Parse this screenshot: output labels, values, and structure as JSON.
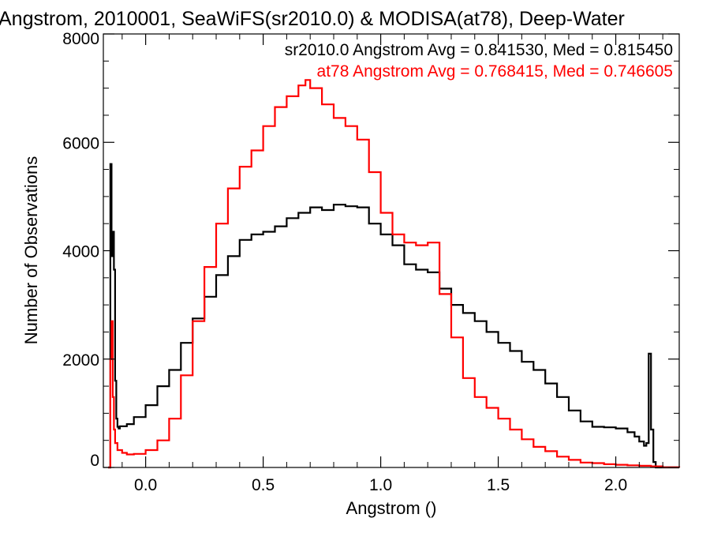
{
  "chart_data": {
    "type": "line",
    "title": "Angstrom, 2010001, SeaWiFS(sr2010.0) & MODISA(at78), Deep-Water",
    "xlabel": "Angstrom ()",
    "ylabel": "Number of Observations",
    "xlim": [
      -0.18,
      2.27
    ],
    "ylim": [
      0,
      8000
    ],
    "x_ticks": [
      0.0,
      0.5,
      1.0,
      1.5,
      2.0
    ],
    "x_tick_labels": [
      "0.0",
      "0.5",
      "1.0",
      "1.5",
      "2.0"
    ],
    "y_ticks": [
      0,
      2000,
      4000,
      6000,
      8000
    ],
    "y_tick_labels": [
      "0",
      "2000",
      "4000",
      "6000",
      "8000"
    ],
    "grid": false,
    "legend_position": "top-right",
    "annotations": [
      {
        "text": "sr2010.0 Angstrom Avg = 0.841530, Med = 0.815450",
        "color": "#000000"
      },
      {
        "text": "at78 Angstrom Avg = 0.768415, Med = 0.746605",
        "color": "#ff0000"
      }
    ],
    "series": [
      {
        "name": "sr2010.0",
        "color": "#000000",
        "x": [
          -0.16,
          -0.15,
          -0.145,
          -0.14,
          -0.135,
          -0.13,
          -0.125,
          -0.12,
          -0.115,
          -0.11,
          -0.1,
          -0.08,
          -0.05,
          0.0,
          0.05,
          0.1,
          0.15,
          0.2,
          0.25,
          0.3,
          0.35,
          0.4,
          0.45,
          0.5,
          0.55,
          0.6,
          0.65,
          0.7,
          0.75,
          0.8,
          0.85,
          0.9,
          0.95,
          1.0,
          1.05,
          1.1,
          1.15,
          1.2,
          1.25,
          1.3,
          1.35,
          1.4,
          1.45,
          1.5,
          1.55,
          1.6,
          1.65,
          1.7,
          1.75,
          1.8,
          1.85,
          1.9,
          1.95,
          2.0,
          2.05,
          2.08,
          2.1,
          2.12,
          2.13,
          2.14,
          2.15,
          2.16,
          2.17,
          2.2,
          2.27
        ],
        "y": [
          0,
          5600,
          3900,
          4350,
          3650,
          1600,
          900,
          750,
          720,
          760,
          760,
          800,
          930,
          1150,
          1500,
          1800,
          2300,
          2750,
          3150,
          3550,
          3900,
          4200,
          4300,
          4350,
          4450,
          4600,
          4700,
          4800,
          4750,
          4850,
          4820,
          4800,
          4500,
          4300,
          4100,
          3750,
          3650,
          3600,
          3300,
          3000,
          2850,
          2700,
          2500,
          2300,
          2150,
          1950,
          1800,
          1550,
          1300,
          1050,
          850,
          750,
          740,
          720,
          650,
          570,
          480,
          400,
          450,
          2100,
          700,
          100,
          0,
          0,
          0
        ]
      },
      {
        "name": "at78",
        "color": "#ff0000",
        "x": [
          -0.16,
          -0.15,
          -0.145,
          -0.14,
          -0.135,
          -0.13,
          -0.12,
          -0.1,
          -0.08,
          -0.05,
          0.0,
          0.05,
          0.1,
          0.15,
          0.2,
          0.25,
          0.3,
          0.35,
          0.4,
          0.45,
          0.5,
          0.55,
          0.6,
          0.65,
          0.68,
          0.7,
          0.75,
          0.8,
          0.85,
          0.9,
          0.95,
          1.0,
          1.05,
          1.1,
          1.15,
          1.2,
          1.25,
          1.3,
          1.35,
          1.4,
          1.45,
          1.5,
          1.55,
          1.6,
          1.65,
          1.7,
          1.75,
          1.8,
          1.85,
          1.9,
          1.95,
          2.0,
          2.05,
          2.1,
          2.15,
          2.2,
          2.27
        ],
        "y": [
          0,
          2000,
          2700,
          1300,
          700,
          450,
          320,
          270,
          240,
          250,
          320,
          500,
          900,
          1700,
          2700,
          3700,
          4500,
          5150,
          5550,
          5850,
          6300,
          6650,
          6850,
          7050,
          7150,
          7000,
          6700,
          6450,
          6300,
          6050,
          5450,
          4700,
          4300,
          4150,
          4100,
          4150,
          3200,
          2400,
          1650,
          1300,
          1100,
          900,
          700,
          520,
          380,
          300,
          200,
          140,
          90,
          80,
          60,
          50,
          40,
          30,
          20,
          5,
          0
        ]
      }
    ]
  }
}
